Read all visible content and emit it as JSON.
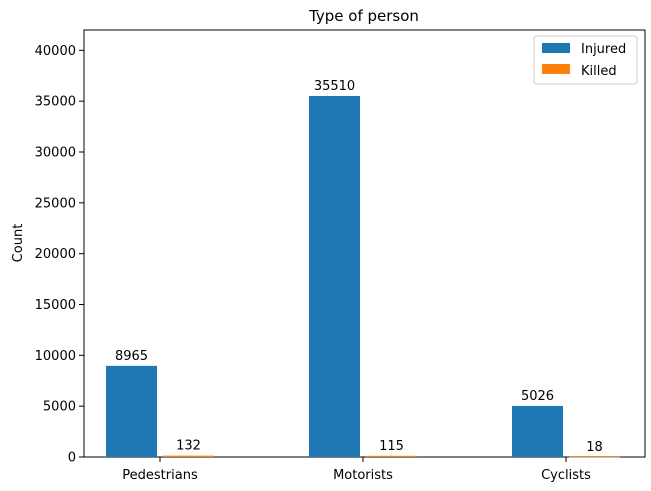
{
  "chart_data": {
    "type": "bar",
    "title": "Type of person",
    "xlabel": "",
    "ylabel": "Count",
    "categories": [
      "Pedestrians",
      "Motorists",
      "Cyclists"
    ],
    "series": [
      {
        "name": "Injured",
        "values": [
          8965,
          35510,
          5026
        ],
        "color": "#1f77b4"
      },
      {
        "name": "Killed",
        "values": [
          132,
          115,
          18
        ],
        "color": "#ff7f0e"
      }
    ],
    "ylim": [
      0,
      42000
    ],
    "yticks": [
      0,
      5000,
      10000,
      15000,
      20000,
      25000,
      30000,
      35000,
      40000
    ],
    "legend_position": "top-right",
    "grid": false
  }
}
